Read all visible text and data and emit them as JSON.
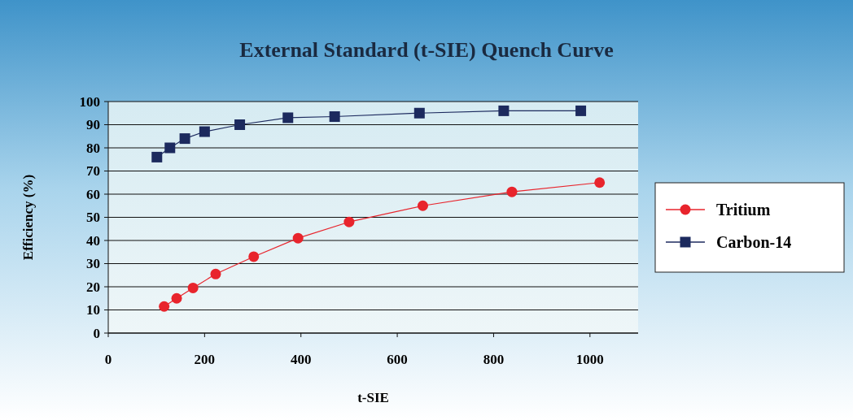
{
  "chart_data": {
    "type": "line",
    "title": "External Standard (t-SIE) Quench Curve",
    "xlabel": "t-SIE",
    "ylabel": "Efficiency (%)",
    "xlim": [
      0,
      1100
    ],
    "xticks": [
      0,
      200,
      400,
      600,
      800,
      1000
    ],
    "ylim": [
      0,
      100
    ],
    "yticks": [
      0,
      10,
      20,
      30,
      40,
      50,
      60,
      70,
      80,
      90,
      100
    ],
    "grid": "y",
    "legend": "right",
    "series": [
      {
        "name": "Tritium",
        "color": "#e8242c",
        "marker": "circle",
        "x": [
          116,
          142,
          176,
          223,
          302,
          394,
          500,
          653,
          838,
          1020
        ],
        "values": [
          11.5,
          15,
          19.5,
          25.5,
          33,
          41,
          48,
          55,
          61,
          65
        ]
      },
      {
        "name": "Carbon-14",
        "color": "#1c2a5e",
        "marker": "square",
        "x": [
          101,
          128,
          159,
          200,
          273,
          373,
          470,
          646,
          821,
          981
        ],
        "values": [
          76,
          80,
          84,
          87,
          90,
          93,
          93.5,
          95,
          96,
          96
        ]
      }
    ]
  }
}
